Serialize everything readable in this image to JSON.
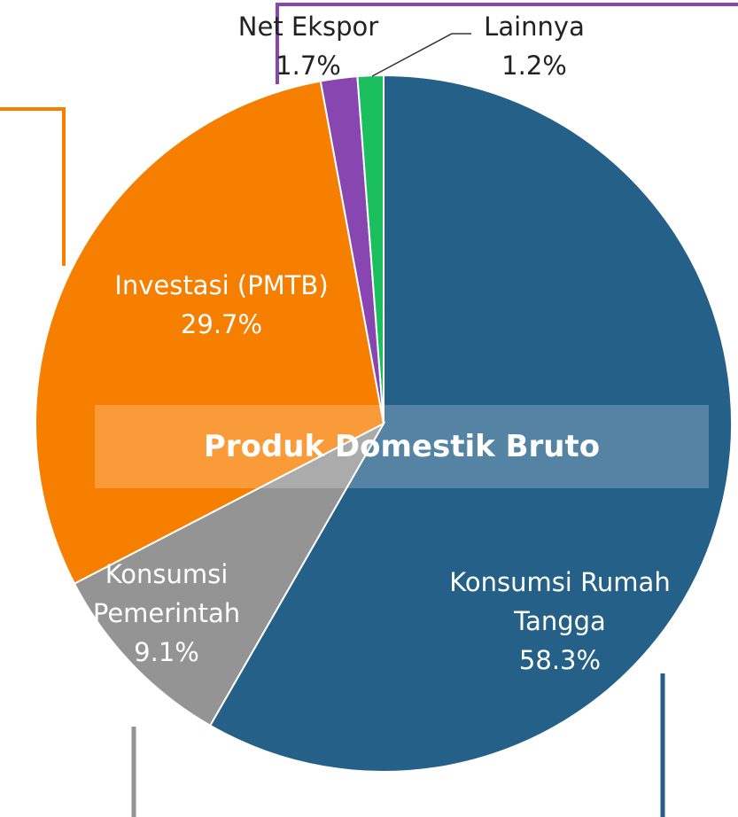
{
  "chart_data": {
    "type": "pie",
    "title": "Produk Domestik Bruto",
    "categories": [
      "Konsumsi Rumah Tangga",
      "Konsumsi Pemerintah",
      "Investasi (PMTB)",
      "Net Ekspor",
      "Lainnya"
    ],
    "values": [
      58.3,
      9.1,
      29.7,
      1.7,
      1.2
    ],
    "value_labels": [
      "58.3%",
      "9.1%",
      "29.7%",
      "1.7%",
      "1.2%"
    ],
    "colors": [
      "#256089",
      "#949494",
      "#f77f00",
      "#8746b0",
      "#1cbf5e"
    ]
  }
}
